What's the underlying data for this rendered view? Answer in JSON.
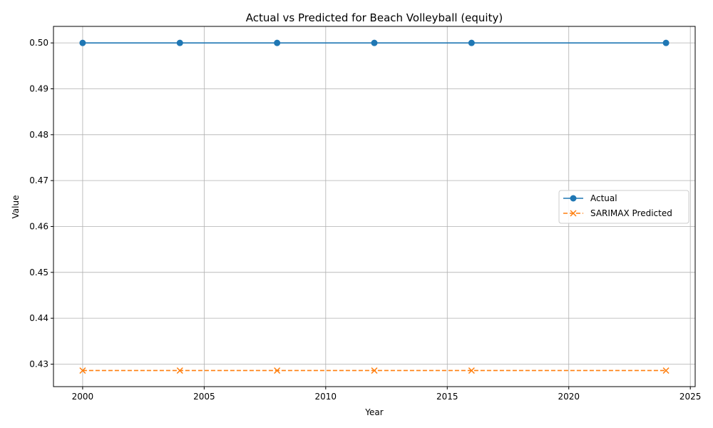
{
  "chart_data": {
    "type": "line",
    "title": "Actual vs Predicted for Beach Volleyball (equity)",
    "xlabel": "Year",
    "ylabel": "Value",
    "xlim": [
      1998.8,
      2025.2
    ],
    "ylim": [
      0.4251,
      0.5036
    ],
    "x_ticks": [
      2000,
      2005,
      2010,
      2015,
      2020,
      2025
    ],
    "y_ticks": [
      0.43,
      0.44,
      0.45,
      0.46,
      0.47,
      0.48,
      0.49,
      0.5
    ],
    "grid": true,
    "legend_position": "center-right",
    "series": [
      {
        "name": "Actual",
        "color": "#1f77b4",
        "marker": "circle",
        "line_style": "solid",
        "x": [
          2000,
          2004,
          2008,
          2012,
          2016,
          2024
        ],
        "y": [
          0.5,
          0.5,
          0.5,
          0.5,
          0.5,
          0.5
        ]
      },
      {
        "name": "SARIMAX Predicted",
        "color": "#ff7f0e",
        "marker": "x",
        "line_style": "dashed",
        "x": [
          2000,
          2004,
          2008,
          2012,
          2016,
          2024
        ],
        "y": [
          0.4286,
          0.4286,
          0.4286,
          0.4286,
          0.4286,
          0.4286
        ]
      }
    ]
  }
}
